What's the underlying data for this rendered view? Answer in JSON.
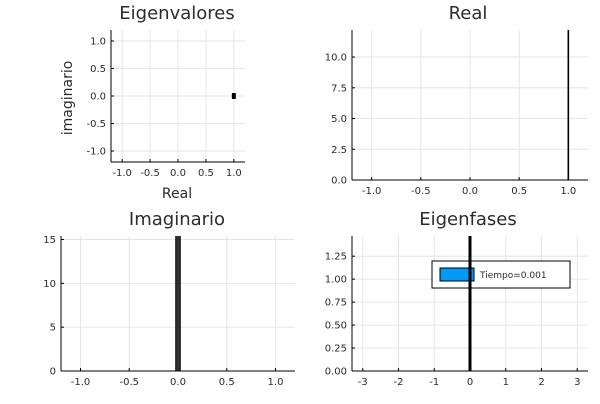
{
  "chart_data": [
    {
      "type": "scatter",
      "title": "Eigenvalores",
      "xlabel": "Real",
      "ylabel": "imaginario",
      "xlim": [
        -1.2,
        1.2
      ],
      "ylim": [
        -1.2,
        1.2
      ],
      "xticks": [
        "-1.0",
        "-0.5",
        "0.0",
        "0.5",
        "1.0"
      ],
      "yticks": [
        "-1.0",
        "-0.5",
        "0.0",
        "0.5",
        "1.0"
      ],
      "xtick_values": [
        -1.0,
        -0.5,
        0.0,
        0.5,
        1.0
      ],
      "ytick_values": [
        -1.0,
        -0.5,
        0.0,
        0.5,
        1.0
      ],
      "grid": true,
      "points": [
        {
          "x": 1.0,
          "y": 0.0
        }
      ],
      "color": "#000000"
    },
    {
      "type": "bar",
      "title": "Real",
      "xlim": [
        -1.2,
        1.2
      ],
      "ylim": [
        0,
        12.2
      ],
      "xticks": [
        "-1.0",
        "-0.5",
        "0.0",
        "0.5",
        "1.0"
      ],
      "yticks": [
        "0.0",
        "2.5",
        "5.0",
        "7.5",
        "10.0"
      ],
      "xtick_values": [
        -1.0,
        -0.5,
        0.0,
        0.5,
        1.0
      ],
      "ytick_values": [
        0,
        2.5,
        5.0,
        7.5,
        10.0
      ],
      "grid": true,
      "bars": [
        {
          "x": 1.0,
          "y": 12.2
        }
      ],
      "color": "#000000"
    },
    {
      "type": "bar",
      "title": "Imaginario",
      "xlim": [
        -1.2,
        1.2
      ],
      "ylim": [
        0,
        15.4
      ],
      "xticks": [
        "-1.0",
        "-0.5",
        "0.0",
        "0.5",
        "1.0"
      ],
      "yticks": [
        "0",
        "5",
        "10",
        "15"
      ],
      "xtick_values": [
        -1.0,
        -0.5,
        0.0,
        0.5,
        1.0
      ],
      "ytick_values": [
        0,
        5,
        10,
        15
      ],
      "grid": true,
      "bars": [
        {
          "x": -0.02,
          "y": 15.4
        },
        {
          "x": 0.0,
          "y": 15.4
        },
        {
          "x": 0.02,
          "y": 15.4
        }
      ],
      "color": "#000000"
    },
    {
      "type": "bar",
      "title": "Eigenfases",
      "xlim": [
        -3.3,
        3.3
      ],
      "ylim": [
        0,
        1.47
      ],
      "xticks": [
        "-3",
        "-2",
        "-1",
        "0",
        "1",
        "2",
        "3"
      ],
      "yticks": [
        "0.00",
        "0.25",
        "0.50",
        "0.75",
        "1.00",
        "1.25"
      ],
      "xtick_values": [
        -3,
        -2,
        -1,
        0,
        1,
        2,
        3
      ],
      "ytick_values": [
        0,
        0.25,
        0.5,
        0.75,
        1.0,
        1.25
      ],
      "grid": true,
      "bars": [
        {
          "x": 0.0,
          "y": 1.47
        }
      ],
      "color": "#000000",
      "legend": {
        "entries": [
          {
            "name": "Tiempo=0.001",
            "color": "#009af9"
          }
        ],
        "placement": "top-right"
      }
    }
  ]
}
